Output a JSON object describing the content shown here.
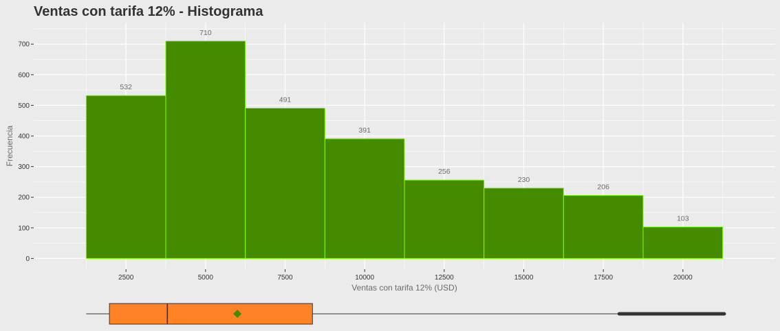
{
  "chart_data": [
    {
      "type": "bar",
      "subtype": "histogram",
      "title": "Ventas con tarifa 12% - Histograma",
      "xlabel": "Ventas con tarifa 12% (USD)",
      "ylabel": "Frecuencia",
      "bins": [
        {
          "x0": 1250,
          "x1": 3750,
          "count": 532,
          "label": "532"
        },
        {
          "x0": 3750,
          "x1": 6250,
          "count": 710,
          "label": "710"
        },
        {
          "x0": 6250,
          "x1": 8750,
          "count": 491,
          "label": "491"
        },
        {
          "x0": 8750,
          "x1": 11250,
          "count": 391,
          "label": "391"
        },
        {
          "x0": 11250,
          "x1": 13750,
          "count": 256,
          "label": "256"
        },
        {
          "x0": 13750,
          "x1": 16250,
          "count": 230,
          "label": "230"
        },
        {
          "x0": 16250,
          "x1": 18750,
          "count": 206,
          "label": "206"
        },
        {
          "x0": 18750,
          "x1": 21250,
          "count": 103,
          "label": "103"
        }
      ],
      "xlim": [
        -400,
        22900
      ],
      "ylim": [
        -35,
        770
      ],
      "xticks": [
        2500,
        5000,
        7500,
        10000,
        12500,
        15000,
        17500,
        20000
      ],
      "xtick_labels": [
        "2500",
        "5000",
        "7500",
        "10000",
        "12500",
        "15000",
        "17500",
        "20000"
      ],
      "yticks": [
        0,
        100,
        200,
        300,
        400,
        500,
        600,
        700
      ],
      "ytick_labels": [
        "0",
        "100",
        "200",
        "300",
        "400",
        "500",
        "600",
        "700"
      ],
      "grid": true,
      "colors": {
        "fill": "#458b00",
        "border": "#7fff00",
        "panel": "#ebebeb",
        "grid": "#ffffff"
      }
    },
    {
      "type": "boxplot",
      "min": 1250,
      "q1": 1980,
      "median": 3800,
      "mean": 6000,
      "q3": 8360,
      "whisker_high": 17950,
      "outliers_from": 18000,
      "outliers_to": 21300,
      "colors": {
        "box": "#ff8225",
        "mean": "#458b00"
      }
    }
  ]
}
